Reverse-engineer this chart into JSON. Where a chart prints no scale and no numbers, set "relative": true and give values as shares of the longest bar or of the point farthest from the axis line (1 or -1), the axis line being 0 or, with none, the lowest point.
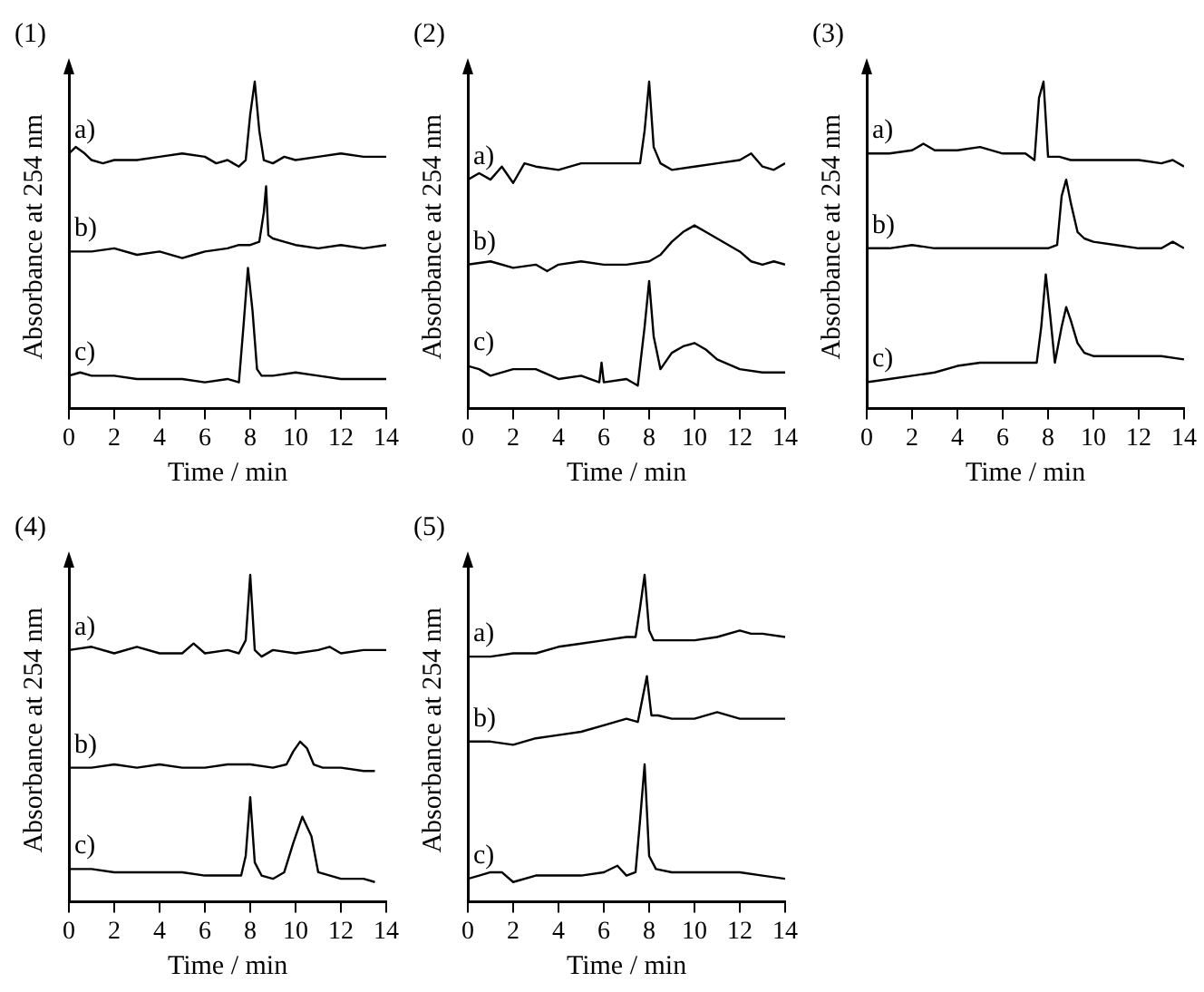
{
  "chart_data": [
    {
      "type": "line",
      "title": "(1)",
      "xlabel": "Time / min",
      "ylabel": "Absorbance at 254 nm",
      "relative": true,
      "xlim": [
        0,
        14
      ],
      "xticks": [
        0,
        2,
        4,
        6,
        8,
        10,
        12,
        14
      ],
      "grid": false,
      "series": [
        {
          "name": "a)",
          "color": "#000000",
          "x": [
            0,
            0.3,
            0.7,
            1,
            1.5,
            2,
            3,
            4,
            5,
            6,
            6.5,
            7,
            7.5,
            7.8,
            8.0,
            8.2,
            8.4,
            8.6,
            9,
            9.5,
            10,
            11,
            12,
            13,
            14
          ],
          "values": [
            0.78,
            0.8,
            0.78,
            0.76,
            0.75,
            0.76,
            0.76,
            0.77,
            0.78,
            0.77,
            0.75,
            0.76,
            0.74,
            0.76,
            0.9,
            1.0,
            0.85,
            0.76,
            0.75,
            0.77,
            0.76,
            0.77,
            0.78,
            0.77,
            0.77
          ]
        },
        {
          "name": "b)",
          "color": "#000000",
          "x": [
            0,
            1,
            2,
            3,
            4,
            5,
            5.5,
            6,
            7,
            7.5,
            8,
            8.4,
            8.6,
            8.7,
            8.8,
            9,
            9.5,
            10,
            11,
            12,
            13,
            14
          ],
          "values": [
            0.48,
            0.48,
            0.49,
            0.47,
            0.48,
            0.46,
            0.47,
            0.48,
            0.49,
            0.5,
            0.5,
            0.51,
            0.6,
            0.68,
            0.53,
            0.52,
            0.51,
            0.5,
            0.49,
            0.5,
            0.49,
            0.5
          ]
        },
        {
          "name": "c)",
          "color": "#000000",
          "x": [
            0,
            0.5,
            1,
            2,
            3,
            4,
            5,
            6,
            7,
            7.5,
            7.7,
            7.9,
            8.1,
            8.3,
            8.5,
            9,
            10,
            11,
            12,
            13,
            14
          ],
          "values": [
            0.1,
            0.11,
            0.1,
            0.1,
            0.09,
            0.09,
            0.09,
            0.08,
            0.09,
            0.08,
            0.25,
            0.43,
            0.3,
            0.12,
            0.1,
            0.1,
            0.11,
            0.1,
            0.09,
            0.09,
            0.09
          ]
        }
      ]
    },
    {
      "type": "line",
      "title": "(2)",
      "xlabel": "Time / min",
      "ylabel": "Absorbance at 254 nm",
      "relative": true,
      "xlim": [
        0,
        14
      ],
      "xticks": [
        0,
        2,
        4,
        6,
        8,
        10,
        12,
        14
      ],
      "grid": false,
      "series": [
        {
          "name": "a)",
          "color": "#000000",
          "x": [
            0,
            0.5,
            1,
            1.5,
            2,
            2.5,
            3,
            4,
            5,
            6,
            7,
            7.6,
            7.8,
            8.0,
            8.2,
            8.5,
            9,
            10,
            11,
            12,
            12.5,
            13,
            13.5,
            14
          ],
          "values": [
            0.7,
            0.72,
            0.7,
            0.74,
            0.69,
            0.75,
            0.74,
            0.73,
            0.75,
            0.75,
            0.75,
            0.75,
            0.85,
            1.0,
            0.8,
            0.75,
            0.73,
            0.74,
            0.75,
            0.76,
            0.78,
            0.74,
            0.73,
            0.75
          ]
        },
        {
          "name": "b)",
          "color": "#000000",
          "x": [
            0,
            1,
            2,
            3,
            3.5,
            4,
            5,
            6,
            7,
            8,
            8.5,
            9,
            9.5,
            10,
            10.5,
            11,
            12,
            12.5,
            13,
            13.5,
            14
          ],
          "values": [
            0.44,
            0.45,
            0.43,
            0.44,
            0.42,
            0.44,
            0.45,
            0.44,
            0.44,
            0.45,
            0.47,
            0.51,
            0.54,
            0.56,
            0.54,
            0.52,
            0.48,
            0.45,
            0.44,
            0.45,
            0.44
          ]
        },
        {
          "name": "c)",
          "color": "#000000",
          "x": [
            0,
            0.5,
            1,
            2,
            3,
            4,
            5,
            5.8,
            5.9,
            6,
            7,
            7.5,
            7.8,
            8.0,
            8.2,
            8.5,
            9,
            9.5,
            10,
            10.5,
            11,
            12,
            13,
            14
          ],
          "values": [
            0.13,
            0.12,
            0.1,
            0.12,
            0.12,
            0.09,
            0.1,
            0.08,
            0.14,
            0.08,
            0.09,
            0.07,
            0.25,
            0.39,
            0.22,
            0.12,
            0.17,
            0.19,
            0.2,
            0.18,
            0.15,
            0.12,
            0.11,
            0.11
          ]
        }
      ]
    },
    {
      "type": "line",
      "title": "(3)",
      "xlabel": "Time / min",
      "ylabel": "Absorbance at 254 nm",
      "relative": true,
      "xlim": [
        0,
        14
      ],
      "xticks": [
        0,
        2,
        4,
        6,
        8,
        10,
        12,
        14
      ],
      "grid": false,
      "series": [
        {
          "name": "a)",
          "color": "#000000",
          "x": [
            0,
            1,
            2,
            2.5,
            3,
            4,
            5,
            6,
            7,
            7.4,
            7.6,
            7.8,
            8.0,
            8.5,
            9,
            10,
            11,
            12,
            13,
            13.5,
            14
          ],
          "values": [
            0.78,
            0.78,
            0.79,
            0.81,
            0.79,
            0.79,
            0.8,
            0.78,
            0.78,
            0.76,
            0.95,
            1.0,
            0.77,
            0.77,
            0.76,
            0.76,
            0.76,
            0.76,
            0.75,
            0.76,
            0.74
          ]
        },
        {
          "name": "b)",
          "color": "#000000",
          "x": [
            0,
            1,
            2,
            3,
            4,
            5,
            6,
            7,
            8,
            8.4,
            8.6,
            8.8,
            9.0,
            9.3,
            9.6,
            10,
            11,
            12,
            13,
            13.5,
            14
          ],
          "values": [
            0.49,
            0.49,
            0.5,
            0.49,
            0.49,
            0.49,
            0.49,
            0.49,
            0.49,
            0.5,
            0.65,
            0.7,
            0.63,
            0.54,
            0.52,
            0.51,
            0.5,
            0.49,
            0.49,
            0.51,
            0.49
          ]
        },
        {
          "name": "c)",
          "color": "#000000",
          "x": [
            0,
            1,
            2,
            3,
            4,
            5,
            6,
            7,
            7.5,
            7.7,
            7.9,
            8.1,
            8.3,
            8.6,
            8.8,
            9.0,
            9.3,
            9.6,
            10,
            11,
            12,
            13,
            14
          ],
          "values": [
            0.08,
            0.09,
            0.1,
            0.11,
            0.13,
            0.14,
            0.14,
            0.14,
            0.14,
            0.25,
            0.41,
            0.28,
            0.14,
            0.25,
            0.31,
            0.27,
            0.2,
            0.17,
            0.16,
            0.16,
            0.16,
            0.16,
            0.15
          ]
        }
      ]
    },
    {
      "type": "line",
      "title": "(4)",
      "xlabel": "Time / min",
      "ylabel": "Absorbance at 254 nm",
      "relative": true,
      "xlim": [
        0,
        14
      ],
      "xticks": [
        0,
        2,
        4,
        6,
        8,
        10,
        12,
        14
      ],
      "grid": false,
      "series": [
        {
          "name": "a)",
          "color": "#000000",
          "x": [
            0,
            1,
            2,
            3,
            4,
            5,
            5.5,
            6,
            7,
            7.5,
            7.8,
            8.0,
            8.2,
            8.5,
            9,
            10,
            11,
            11.5,
            12,
            13,
            14
          ],
          "values": [
            0.77,
            0.78,
            0.76,
            0.78,
            0.76,
            0.76,
            0.79,
            0.76,
            0.77,
            0.76,
            0.8,
            1.0,
            0.77,
            0.75,
            0.77,
            0.76,
            0.77,
            0.78,
            0.76,
            0.77,
            0.77
          ]
        },
        {
          "name": "b)",
          "color": "#000000",
          "x": [
            0,
            1,
            2,
            3,
            4,
            5,
            6,
            7,
            8,
            9,
            9.6,
            9.9,
            10.2,
            10.5,
            10.8,
            11.2,
            12,
            13,
            13.5
          ],
          "values": [
            0.41,
            0.41,
            0.42,
            0.41,
            0.42,
            0.41,
            0.41,
            0.42,
            0.42,
            0.41,
            0.42,
            0.46,
            0.49,
            0.47,
            0.42,
            0.41,
            0.41,
            0.4,
            0.4
          ]
        },
        {
          "name": "c)",
          "color": "#000000",
          "x": [
            0,
            1,
            2,
            3,
            4,
            5,
            6,
            7,
            7.6,
            7.8,
            8.0,
            8.2,
            8.5,
            9,
            9.5,
            9.9,
            10.3,
            10.7,
            11,
            12,
            13,
            13.5
          ],
          "values": [
            0.1,
            0.1,
            0.09,
            0.09,
            0.09,
            0.09,
            0.08,
            0.08,
            0.08,
            0.14,
            0.32,
            0.12,
            0.08,
            0.07,
            0.09,
            0.18,
            0.26,
            0.2,
            0.09,
            0.07,
            0.07,
            0.06
          ]
        }
      ]
    },
    {
      "type": "line",
      "title": "(5)",
      "xlabel": "Time / min",
      "ylabel": "Absorbance at 254 nm",
      "relative": true,
      "xlim": [
        0,
        14
      ],
      "xticks": [
        0,
        2,
        4,
        6,
        8,
        10,
        12,
        14
      ],
      "grid": false,
      "series": [
        {
          "name": "a)",
          "color": "#000000",
          "x": [
            0,
            1,
            2,
            3,
            4,
            5,
            6,
            7,
            7.4,
            7.6,
            7.8,
            8.0,
            8.2,
            9,
            10,
            11,
            12,
            12.5,
            13,
            14
          ],
          "values": [
            0.75,
            0.75,
            0.76,
            0.76,
            0.78,
            0.79,
            0.8,
            0.81,
            0.81,
            0.9,
            1.0,
            0.83,
            0.8,
            0.8,
            0.8,
            0.81,
            0.83,
            0.82,
            0.82,
            0.81
          ]
        },
        {
          "name": "b)",
          "color": "#000000",
          "x": [
            0,
            1,
            2,
            3,
            4,
            5,
            6,
            7,
            7.5,
            7.7,
            7.9,
            8.1,
            8.4,
            9,
            10,
            11,
            12,
            13,
            14
          ],
          "values": [
            0.49,
            0.49,
            0.48,
            0.5,
            0.51,
            0.52,
            0.54,
            0.56,
            0.55,
            0.62,
            0.69,
            0.57,
            0.57,
            0.56,
            0.56,
            0.58,
            0.56,
            0.56,
            0.56
          ]
        },
        {
          "name": "c)",
          "color": "#000000",
          "x": [
            0,
            0.5,
            1,
            1.5,
            2,
            3,
            4,
            5,
            6,
            6.6,
            7,
            7.4,
            7.6,
            7.8,
            8.0,
            8.3,
            9,
            10,
            11,
            12,
            13,
            14
          ],
          "values": [
            0.07,
            0.08,
            0.09,
            0.09,
            0.06,
            0.08,
            0.08,
            0.08,
            0.09,
            0.11,
            0.08,
            0.09,
            0.25,
            0.42,
            0.14,
            0.1,
            0.09,
            0.09,
            0.09,
            0.09,
            0.08,
            0.07
          ]
        }
      ]
    }
  ]
}
